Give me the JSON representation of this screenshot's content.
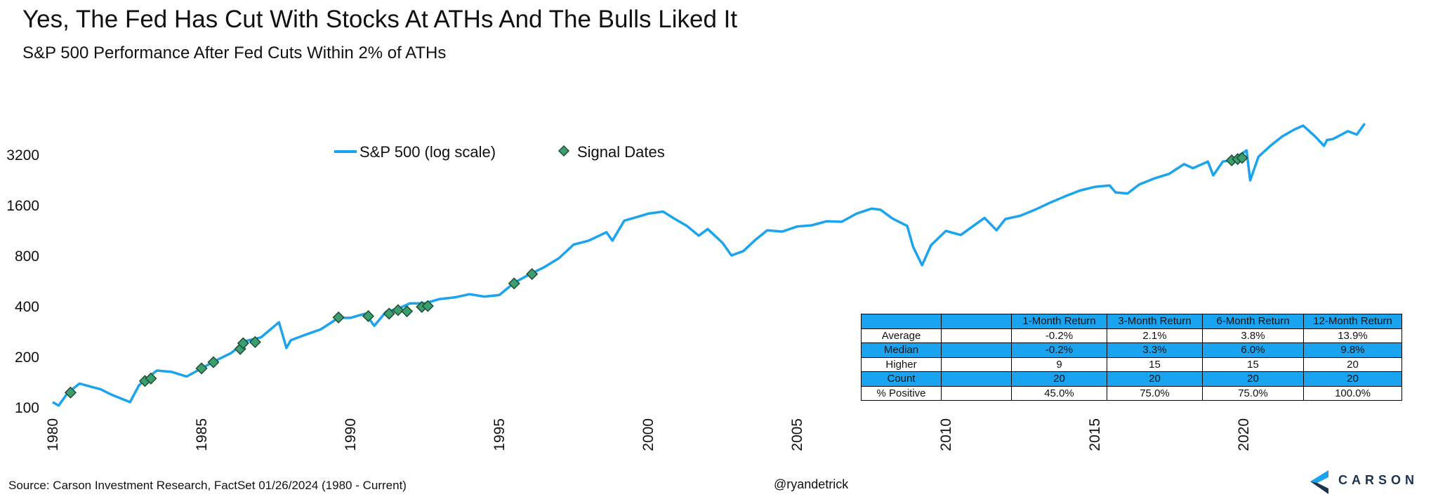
{
  "header": {
    "title": "Yes, The Fed Has Cut With Stocks At ATHs And The Bulls Liked It",
    "subtitle": "S&P 500 Performance After Fed Cuts Within 2% of ATHs"
  },
  "colors": {
    "line": "#1aa3ee",
    "marker_fill": "#3a9e6e",
    "marker_stroke": "#1f4d33",
    "table_highlight": "#1aa3ee",
    "logo": "#1b3350"
  },
  "chart_data": {
    "type": "line",
    "title": "Yes, The Fed Has Cut With Stocks At ATHs And The Bulls Liked It",
    "subtitle": "S&P 500 Performance After Fed Cuts Within 2% of ATHs",
    "y_scale": "log",
    "ylim": [
      100,
      6400
    ],
    "xlim": [
      1980,
      2024.1
    ],
    "y_ticks": [
      100,
      200,
      400,
      800,
      1600,
      3200
    ],
    "x_ticks": [
      1980,
      1985,
      1990,
      1995,
      2000,
      2005,
      2010,
      2015,
      2020
    ],
    "grid": false,
    "legend_position": "top-center",
    "series": [
      {
        "name": "S&P 500 (log scale)",
        "points": [
          [
            1980.0,
            107
          ],
          [
            1980.2,
            102
          ],
          [
            1980.5,
            121
          ],
          [
            1980.9,
            138
          ],
          [
            1981.3,
            132
          ],
          [
            1981.6,
            128
          ],
          [
            1982.0,
            118
          ],
          [
            1982.6,
            107
          ],
          [
            1982.9,
            135
          ],
          [
            1983.2,
            150
          ],
          [
            1983.5,
            165
          ],
          [
            1984.0,
            162
          ],
          [
            1984.5,
            152
          ],
          [
            1985.0,
            170
          ],
          [
            1985.5,
            190
          ],
          [
            1986.0,
            210
          ],
          [
            1986.5,
            248
          ],
          [
            1987.0,
            260
          ],
          [
            1987.6,
            320
          ],
          [
            1987.85,
            225
          ],
          [
            1988.0,
            250
          ],
          [
            1988.5,
            270
          ],
          [
            1989.0,
            290
          ],
          [
            1989.6,
            340
          ],
          [
            1990.0,
            340
          ],
          [
            1990.5,
            360
          ],
          [
            1990.8,
            305
          ],
          [
            1991.2,
            370
          ],
          [
            1991.6,
            385
          ],
          [
            1992.0,
            415
          ],
          [
            1992.5,
            415
          ],
          [
            1993.0,
            440
          ],
          [
            1993.5,
            450
          ],
          [
            1994.0,
            470
          ],
          [
            1994.5,
            455
          ],
          [
            1995.0,
            465
          ],
          [
            1995.5,
            550
          ],
          [
            1996.0,
            615
          ],
          [
            1996.5,
            680
          ],
          [
            1997.0,
            770
          ],
          [
            1997.5,
            930
          ],
          [
            1998.0,
            980
          ],
          [
            1998.6,
            1100
          ],
          [
            1998.8,
            980
          ],
          [
            1999.2,
            1290
          ],
          [
            1999.6,
            1350
          ],
          [
            2000.0,
            1420
          ],
          [
            2000.5,
            1460
          ],
          [
            2000.9,
            1320
          ],
          [
            2001.3,
            1200
          ],
          [
            2001.7,
            1050
          ],
          [
            2002.0,
            1150
          ],
          [
            2002.5,
            950
          ],
          [
            2002.8,
            800
          ],
          [
            2003.2,
            850
          ],
          [
            2003.6,
            990
          ],
          [
            2004.0,
            1130
          ],
          [
            2004.5,
            1110
          ],
          [
            2005.0,
            1190
          ],
          [
            2005.5,
            1210
          ],
          [
            2006.0,
            1280
          ],
          [
            2006.5,
            1270
          ],
          [
            2007.0,
            1420
          ],
          [
            2007.5,
            1520
          ],
          [
            2007.8,
            1500
          ],
          [
            2008.2,
            1330
          ],
          [
            2008.7,
            1200
          ],
          [
            2008.9,
            900
          ],
          [
            2009.2,
            700
          ],
          [
            2009.5,
            920
          ],
          [
            2010.0,
            1120
          ],
          [
            2010.5,
            1060
          ],
          [
            2011.3,
            1340
          ],
          [
            2011.7,
            1130
          ],
          [
            2012.0,
            1320
          ],
          [
            2012.5,
            1380
          ],
          [
            2013.0,
            1500
          ],
          [
            2013.5,
            1650
          ],
          [
            2014.0,
            1800
          ],
          [
            2014.5,
            1950
          ],
          [
            2015.0,
            2050
          ],
          [
            2015.5,
            2090
          ],
          [
            2015.7,
            1900
          ],
          [
            2016.1,
            1870
          ],
          [
            2016.5,
            2120
          ],
          [
            2017.0,
            2300
          ],
          [
            2017.5,
            2450
          ],
          [
            2018.0,
            2800
          ],
          [
            2018.3,
            2650
          ],
          [
            2018.8,
            2900
          ],
          [
            2018.98,
            2400
          ],
          [
            2019.3,
            2900
          ],
          [
            2019.6,
            2950
          ],
          [
            2019.9,
            3200
          ],
          [
            2020.1,
            3380
          ],
          [
            2020.22,
            2240
          ],
          [
            2020.5,
            3100
          ],
          [
            2020.9,
            3600
          ],
          [
            2021.3,
            4100
          ],
          [
            2021.7,
            4500
          ],
          [
            2022.0,
            4750
          ],
          [
            2022.4,
            4100
          ],
          [
            2022.7,
            3600
          ],
          [
            2022.8,
            3900
          ],
          [
            2023.0,
            3950
          ],
          [
            2023.5,
            4400
          ],
          [
            2023.8,
            4200
          ],
          [
            2024.07,
            4890
          ]
        ]
      },
      {
        "name": "Signal Dates",
        "marker": "diamond",
        "points": [
          [
            1980.6,
            122
          ],
          [
            1983.1,
            143
          ],
          [
            1983.3,
            148
          ],
          [
            1985.0,
            170
          ],
          [
            1985.4,
            185
          ],
          [
            1986.3,
            222
          ],
          [
            1986.4,
            240
          ],
          [
            1986.8,
            244
          ],
          [
            1989.6,
            342
          ],
          [
            1990.6,
            348
          ],
          [
            1991.3,
            360
          ],
          [
            1991.6,
            378
          ],
          [
            1991.9,
            372
          ],
          [
            1992.4,
            395
          ],
          [
            1992.6,
            400
          ],
          [
            1995.5,
            545
          ],
          [
            1996.1,
            620
          ],
          [
            2019.6,
            2950
          ],
          [
            2019.8,
            3000
          ],
          [
            2019.95,
            3050
          ]
        ]
      }
    ],
    "table": {
      "headers": [
        "",
        "",
        "1-Month Return",
        "3-Month Return",
        "6-Month Return",
        "12-Month Return"
      ],
      "rows": [
        {
          "label": "Average",
          "cells": [
            "-0.2%",
            "2.1%",
            "3.8%",
            "13.9%"
          ]
        },
        {
          "label": "Median",
          "cells": [
            "-0.2%",
            "3.3%",
            "6.0%",
            "9.8%"
          ]
        },
        {
          "label": "Higher",
          "cells": [
            "9",
            "15",
            "15",
            "20"
          ]
        },
        {
          "label": "Count",
          "cells": [
            "20",
            "20",
            "20",
            "20"
          ]
        },
        {
          "label": "% Positive",
          "cells": [
            "45.0%",
            "75.0%",
            "75.0%",
            "100.0%"
          ]
        }
      ]
    }
  },
  "footer": {
    "source": "Source: Carson Investment Research, FactSet 01/26/2024 (1980 - Current)",
    "handle": "@ryandetrick",
    "logo_text": "CARSON"
  }
}
